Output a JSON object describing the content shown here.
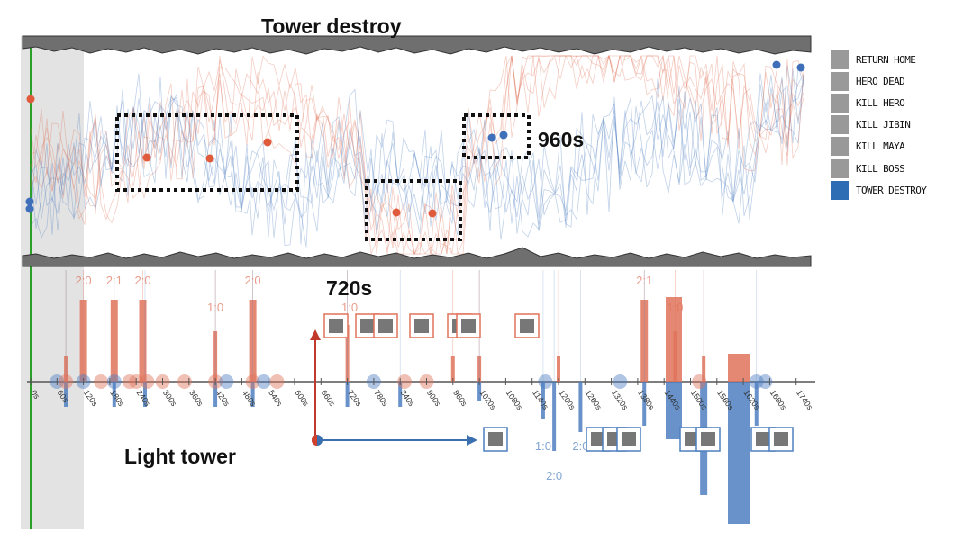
{
  "title": "Tower destroy",
  "annotations": {
    "t960": "960s",
    "t720": "720s",
    "light_tower": "Light tower"
  },
  "legend": [
    {
      "label": "RETURN HOME",
      "color": "#999999"
    },
    {
      "label": "HERO DEAD",
      "color": "#999999"
    },
    {
      "label": "KILL HERO",
      "color": "#999999"
    },
    {
      "label": "KILL JIBIN",
      "color": "#999999"
    },
    {
      "label": "KILL MAYA",
      "color": "#999999"
    },
    {
      "label": "KILL BOSS",
      "color": "#999999"
    },
    {
      "label": "TOWER DESTROY",
      "color": "#2e6db4"
    }
  ],
  "colors": {
    "red": "#e0735a",
    "blue": "#4d7fc0",
    "gray_band": "#6f6f6f"
  },
  "chart_data": {
    "type": "bar",
    "x_axis_ticks": [
      "0s",
      "60s",
      "120s",
      "180s",
      "240s",
      "300s",
      "360s",
      "420s",
      "480s",
      "540s",
      "600s",
      "660s",
      "720s",
      "780s",
      "840s",
      "900s",
      "960s",
      "1020s",
      "1080s",
      "1140s",
      "1200s",
      "1260s",
      "1320s",
      "1380s",
      "1440s",
      "1500s",
      "1560s",
      "1620s",
      "1680s",
      "1740s"
    ],
    "score_labels_red": [
      {
        "t": 120,
        "text": "2:0"
      },
      {
        "t": 190,
        "text": "2:1"
      },
      {
        "t": 255,
        "text": "2:0"
      },
      {
        "t": 420,
        "text": "1:0"
      },
      {
        "t": 505,
        "text": "2:0"
      },
      {
        "t": 725,
        "text": "1:0"
      },
      {
        "t": 1395,
        "text": "2:1"
      },
      {
        "t": 1465,
        "text": "1:0"
      }
    ],
    "score_labels_blue": [
      {
        "t": 1165,
        "text": "1:0"
      },
      {
        "t": 1190,
        "text": "2:0"
      },
      {
        "t": 1250,
        "text": "2:0"
      }
    ],
    "series": [
      {
        "name": "red",
        "bars": [
          {
            "t": 80,
            "h": 20
          },
          {
            "t": 120,
            "h": 65
          },
          {
            "t": 190,
            "h": 65
          },
          {
            "t": 255,
            "h": 65
          },
          {
            "t": 420,
            "h": 40
          },
          {
            "t": 505,
            "h": 65
          },
          {
            "t": 720,
            "h": 45
          },
          {
            "t": 960,
            "h": 20
          },
          {
            "t": 1020,
            "h": 20
          },
          {
            "t": 1200,
            "h": 20
          },
          {
            "t": 1395,
            "h": 65
          },
          {
            "t": 1465,
            "h": 40
          },
          {
            "t": 1530,
            "h": 20
          }
        ]
      },
      {
        "name": "blue",
        "bars": [
          {
            "t": 80,
            "h": 20
          },
          {
            "t": 190,
            "h": 20
          },
          {
            "t": 260,
            "h": 20
          },
          {
            "t": 420,
            "h": 20
          },
          {
            "t": 505,
            "h": 20
          },
          {
            "t": 720,
            "h": 20
          },
          {
            "t": 840,
            "h": 20
          },
          {
            "t": 1020,
            "h": 15
          },
          {
            "t": 1165,
            "h": 30
          },
          {
            "t": 1190,
            "h": 55
          },
          {
            "t": 1250,
            "h": 40
          },
          {
            "t": 1395,
            "h": 35
          },
          {
            "t": 1530,
            "h": 90
          },
          {
            "t": 1650,
            "h": 35
          }
        ]
      }
    ]
  }
}
